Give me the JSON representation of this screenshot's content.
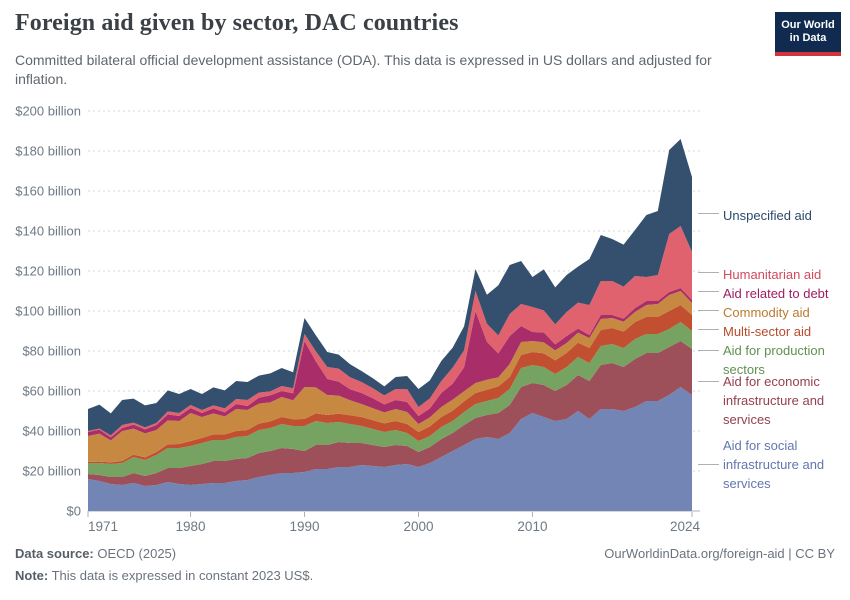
{
  "header": {
    "title": "Foreign aid given by sector, DAC countries",
    "subtitle": "Committed bilateral official development assistance (ODA). This data is expressed in US dollars and adjusted for inflation.",
    "logo": {
      "line1": "Our World",
      "line2": "in Data",
      "bg_color": "#102a50",
      "accent_color": "#d0333c"
    }
  },
  "footer": {
    "source_label": "Data source:",
    "source_value": " OECD (2025)",
    "note_label": "Note:",
    "note_value": " This data is expressed in constant 2023 US$.",
    "credit": "OurWorldinData.org/foreign-aid | CC BY"
  },
  "chart_data": {
    "type": "area",
    "stacked": true,
    "title": "Foreign aid given by sector, DAC countries",
    "xlabel": "",
    "ylabel": "",
    "unit": "US$ billion",
    "grid": "dashed horizontal",
    "legend_position": "right",
    "ylim": [
      0,
      200
    ],
    "x": [
      1971,
      1972,
      1973,
      1974,
      1975,
      1976,
      1977,
      1978,
      1979,
      1980,
      1981,
      1982,
      1983,
      1984,
      1985,
      1986,
      1987,
      1988,
      1989,
      1990,
      1991,
      1992,
      1993,
      1994,
      1995,
      1996,
      1997,
      1998,
      1999,
      2000,
      2001,
      2002,
      2003,
      2004,
      2005,
      2006,
      2007,
      2008,
      2009,
      2010,
      2011,
      2012,
      2013,
      2014,
      2015,
      2016,
      2017,
      2018,
      2019,
      2020,
      2021,
      2022,
      2023,
      2024
    ],
    "x_ticks": [
      1971,
      1980,
      1990,
      2000,
      2010,
      2024
    ],
    "y_ticks": [
      {
        "value": 0,
        "label": "$0"
      },
      {
        "value": 20,
        "label": "$20 billion"
      },
      {
        "value": 40,
        "label": "$40 billion"
      },
      {
        "value": 60,
        "label": "$60 billion"
      },
      {
        "value": 80,
        "label": "$80 billion"
      },
      {
        "value": 100,
        "label": "$100 billion"
      },
      {
        "value": 120,
        "label": "$120 billion"
      },
      {
        "value": 140,
        "label": "$140 billion"
      },
      {
        "value": 160,
        "label": "$160 billion"
      },
      {
        "value": 180,
        "label": "$180 billion"
      },
      {
        "value": 200,
        "label": "$200 billion"
      }
    ],
    "series": [
      {
        "name": "Aid for social infrastructure and services",
        "color": "#7385b4",
        "label_color": "#6377ad",
        "values": [
          16,
          15,
          13.5,
          13,
          14,
          12.5,
          13,
          14.5,
          13.5,
          13,
          13.5,
          14,
          14,
          15,
          15.5,
          17,
          18,
          19,
          19,
          19.5,
          21,
          21,
          22,
          22,
          23,
          22.5,
          22,
          23,
          23.5,
          22,
          24,
          27,
          30,
          33,
          36,
          37,
          36,
          39,
          46,
          49,
          47,
          45,
          46,
          50,
          46,
          51,
          51,
          50,
          52,
          55,
          55,
          58,
          62,
          58
        ]
      },
      {
        "name": "Aid for economic infrastructure and services",
        "color": "#9d505a",
        "label_color": "#93414e",
        "values": [
          2.5,
          3,
          3.5,
          4,
          5,
          5,
          6,
          7,
          8,
          9.5,
          10,
          11,
          11,
          11,
          11,
          12,
          12,
          12.5,
          12,
          10.5,
          12,
          12,
          12.5,
          12,
          11,
          10.5,
          10,
          10,
          9,
          7.5,
          8,
          9,
          9,
          10,
          10.5,
          11,
          13,
          14,
          16,
          15,
          16,
          15,
          17,
          18,
          19,
          22,
          23,
          22,
          24,
          24,
          24,
          24,
          23,
          23
        ]
      },
      {
        "name": "Aid for production sectors",
        "color": "#76a361",
        "label_color": "#5f9150",
        "values": [
          5.5,
          6,
          6.5,
          7,
          8,
          8,
          9,
          10,
          10,
          10,
          10.5,
          10.5,
          10.5,
          11,
          11,
          11.5,
          11.5,
          12,
          11.5,
          12.5,
          12,
          11,
          10,
          9.5,
          8.5,
          8,
          7.5,
          7.5,
          6.5,
          5.5,
          5.5,
          6,
          6,
          6.5,
          7,
          7,
          7.5,
          8,
          9.5,
          9,
          9,
          8.5,
          9,
          9,
          9,
          9.5,
          9.5,
          9.5,
          10,
          9.5,
          9.5,
          9,
          9.5,
          9
        ]
      },
      {
        "name": "Multi-sector aid",
        "color": "#c24f30",
        "label_color": "#b94a2c",
        "values": [
          0.5,
          0.7,
          0.8,
          1,
          1.2,
          1.3,
          1.5,
          1.8,
          2,
          2.5,
          2.5,
          2.8,
          2.8,
          3,
          3,
          3.2,
          3.3,
          3.5,
          3.4,
          3.5,
          3.8,
          4,
          4.2,
          4.4,
          4.5,
          4.4,
          4.3,
          4.5,
          4.5,
          4.5,
          4.8,
          5,
          5.2,
          5.4,
          5.5,
          5.6,
          5.8,
          6,
          6.5,
          6.5,
          6.8,
          6.8,
          7,
          7.2,
          7.5,
          8,
          8,
          8.2,
          8.5,
          8.5,
          8.5,
          9,
          8.5,
          8
        ]
      },
      {
        "name": "Commodity aid",
        "color": "#c78942",
        "label_color": "#bb7a2f",
        "values": [
          13,
          14,
          11,
          15,
          13,
          12,
          11,
          12,
          11.5,
          14,
          10.5,
          10.5,
          9,
          11,
          10,
          10,
          9.5,
          10,
          9.5,
          16,
          13,
          10,
          9,
          7.5,
          6.5,
          6,
          5.5,
          6,
          6,
          4,
          4.5,
          5,
          5.5,
          5,
          5,
          5,
          4.5,
          6.5,
          6.5,
          5.5,
          5.5,
          5,
          5,
          5,
          5,
          5.5,
          5,
          5,
          5,
          6,
          6.5,
          8,
          7,
          6
        ]
      },
      {
        "name": "Aid related to debt",
        "color": "#a92d68",
        "label_color": "#a01c62",
        "values": [
          2,
          2,
          1.5,
          1.5,
          2,
          2,
          2.5,
          3,
          2.5,
          2.5,
          2,
          2.5,
          2,
          2.5,
          2,
          3,
          3.5,
          3,
          3.5,
          23,
          13,
          8,
          7,
          5.5,
          5.5,
          5,
          4,
          4.5,
          5,
          4,
          4.5,
          7,
          8,
          12,
          36,
          19,
          12,
          14,
          8,
          4.5,
          5,
          3,
          3.5,
          2,
          1.5,
          2,
          1.5,
          1.5,
          2,
          2,
          1.5,
          1.5,
          1.5,
          1.5
        ]
      },
      {
        "name": "Humanitarian aid",
        "color": "#e0626e",
        "label_color": "#d14a5d",
        "values": [
          0.5,
          0.5,
          1,
          1.5,
          1,
          1,
          1,
          1.5,
          1.5,
          1.5,
          1.5,
          1.5,
          2,
          2.5,
          3,
          2.5,
          2,
          2.5,
          2.5,
          3.5,
          5,
          6,
          6.5,
          6,
          5.5,
          5,
          4.5,
          5.5,
          6.5,
          4.5,
          5,
          6,
          8,
          8.5,
          10,
          9,
          9,
          11,
          11,
          12.5,
          11,
          10,
          12,
          13,
          15,
          17,
          17,
          16,
          16,
          12,
          13,
          29,
          31,
          24
        ]
      },
      {
        "name": "Unspecified aid",
        "color": "#34506e",
        "label_color": "#2a4a6d",
        "values": [
          11,
          12,
          11,
          12.5,
          12,
          11,
          10,
          10.5,
          9.5,
          8,
          8,
          9,
          9,
          9,
          9,
          8.5,
          9,
          9,
          8,
          8,
          8,
          7.5,
          7,
          6.5,
          5.5,
          5,
          4.5,
          6,
          6.5,
          9,
          9,
          10,
          10,
          12,
          11,
          14.5,
          25,
          24.5,
          21.5,
          15,
          20.5,
          18.5,
          18.5,
          18,
          23,
          23,
          21,
          21,
          23,
          31,
          32,
          42,
          43.5,
          37.5
        ]
      }
    ],
    "legend_order": [
      7,
      6,
      5,
      4,
      3,
      2,
      1,
      0
    ]
  }
}
